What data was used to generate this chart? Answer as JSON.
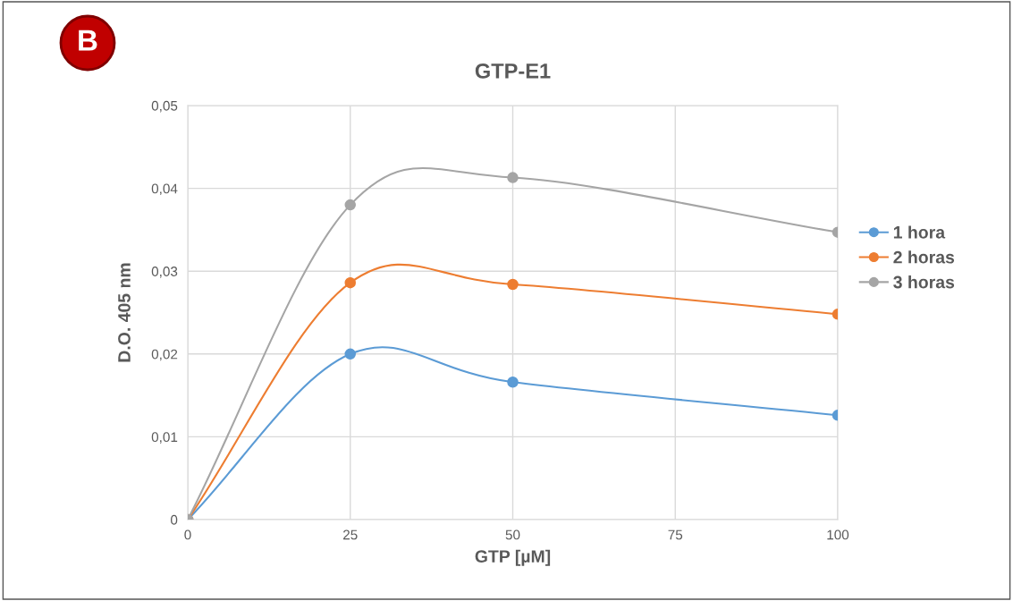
{
  "chart_data": {
    "type": "line",
    "title": "GTP-E1",
    "xlabel": "GTP [µM]",
    "ylabel": "D.O. 405 nm",
    "annotations": [
      "B"
    ],
    "x": [
      0,
      25,
      50,
      100
    ],
    "series": [
      {
        "name": "1 hora",
        "color": "#5b9bd5",
        "values": [
          0,
          0.02,
          0.0166,
          0.0126
        ]
      },
      {
        "name": "2 horas",
        "color": "#ed7d31",
        "values": [
          0,
          0.0286,
          0.0284,
          0.0248
        ]
      },
      {
        "name": "3 horas",
        "color": "#a5a5a5",
        "values": [
          0,
          0.038,
          0.0413,
          0.0347
        ]
      }
    ],
    "xlim": [
      0,
      100
    ],
    "xticks": [
      0,
      25,
      50,
      75,
      100
    ],
    "ylim": [
      0,
      0.05
    ],
    "yticks": [
      {
        "value": 0,
        "label": "0"
      },
      {
        "value": 0.01,
        "label": "0,01"
      },
      {
        "value": 0.02,
        "label": "0,02"
      },
      {
        "value": 0.03,
        "label": "0,03"
      },
      {
        "value": 0.04,
        "label": "0,04"
      },
      {
        "value": 0.05,
        "label": "0,05"
      }
    ],
    "grid": true,
    "legend": "right",
    "marker": "circle",
    "line_style": "solid"
  }
}
